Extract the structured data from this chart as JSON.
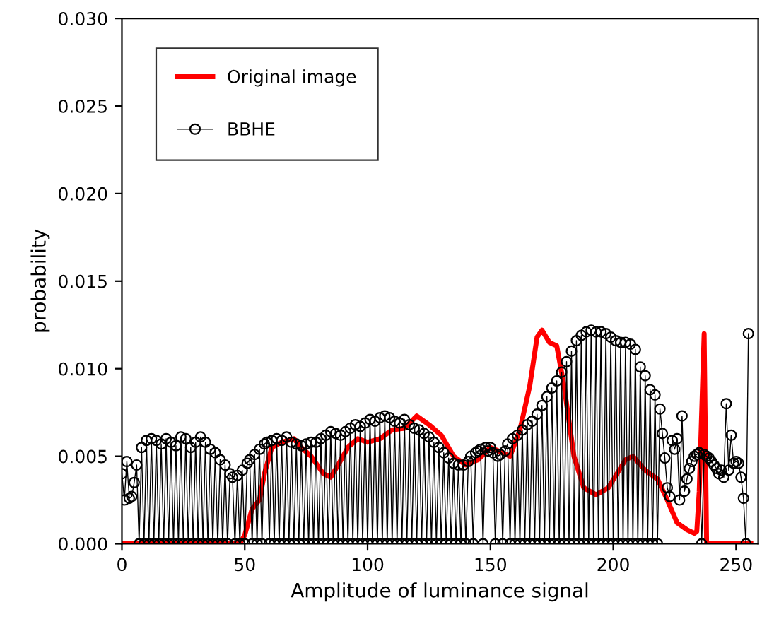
{
  "chart_data": {
    "type": "line",
    "xlabel": "Amplitude of luminance signal",
    "ylabel": "probability",
    "xlim": [
      0,
      259
    ],
    "xticks": [
      0,
      50,
      100,
      150,
      200,
      250
    ],
    "ylim": [
      0,
      0.03
    ],
    "yticks": [
      {
        "value": 0,
        "label": "0.000"
      },
      {
        "value": 0.005,
        "label": "0.005"
      },
      {
        "value": 0.01,
        "label": "0.010"
      },
      {
        "value": 0.015,
        "label": "0.015"
      },
      {
        "value": 0.02,
        "label": "0.020"
      },
      {
        "value": 0.025,
        "label": "0.025"
      },
      {
        "value": 0.03,
        "label": "0.030"
      }
    ],
    "grid": false,
    "legend": "top left",
    "series": [
      {
        "name": "Original image",
        "color": "#ff0000",
        "marker": "none",
        "line_style": "solid",
        "x": [
          0,
          48,
          50,
          53,
          56,
          58,
          61,
          65,
          70,
          73,
          77,
          82,
          85,
          88,
          92,
          96,
          100,
          105,
          110,
          115,
          120,
          125,
          130,
          135,
          140,
          145,
          150,
          155,
          158,
          162,
          166,
          169,
          171,
          174,
          177,
          180,
          184,
          188,
          193,
          198,
          205,
          208,
          213,
          218,
          222,
          226,
          230,
          233,
          234,
          235,
          237,
          238,
          256
        ],
        "values": [
          0,
          0,
          0.0005,
          0.002,
          0.0025,
          0.004,
          0.0055,
          0.0058,
          0.006,
          0.0055,
          0.005,
          0.004,
          0.0038,
          0.0045,
          0.0055,
          0.006,
          0.0058,
          0.006,
          0.0065,
          0.0066,
          0.0073,
          0.0068,
          0.0062,
          0.005,
          0.0045,
          0.0048,
          0.0055,
          0.0052,
          0.005,
          0.0065,
          0.009,
          0.0118,
          0.0122,
          0.0115,
          0.0113,
          0.009,
          0.005,
          0.0032,
          0.0028,
          0.0032,
          0.0048,
          0.005,
          0.0042,
          0.0037,
          0.0025,
          0.0012,
          0.0008,
          0.0006,
          0.0007,
          0.003,
          0.012,
          0,
          0
        ]
      },
      {
        "name": "BBHE",
        "color": "#000000",
        "marker": "circle",
        "line_style": "solid",
        "x": [
          0,
          1,
          2,
          3,
          4,
          5,
          6,
          7,
          8,
          9,
          10,
          11,
          12,
          13,
          14,
          15,
          16,
          17,
          18,
          19,
          20,
          21,
          22,
          23,
          24,
          25,
          26,
          27,
          28,
          29,
          30,
          31,
          32,
          33,
          34,
          35,
          36,
          37,
          38,
          39,
          40,
          41,
          42,
          43,
          44,
          45,
          46,
          47,
          48,
          49,
          50,
          51,
          52,
          53,
          54,
          55,
          56,
          57,
          58,
          59,
          60,
          61,
          62,
          63,
          64,
          65,
          66,
          67,
          68,
          69,
          70,
          71,
          72,
          73,
          74,
          75,
          76,
          77,
          78,
          79,
          80,
          81,
          82,
          83,
          84,
          85,
          86,
          87,
          88,
          89,
          90,
          91,
          92,
          93,
          94,
          95,
          96,
          97,
          98,
          99,
          100,
          101,
          102,
          103,
          104,
          105,
          106,
          107,
          108,
          109,
          110,
          111,
          112,
          113,
          114,
          115,
          116,
          117,
          118,
          119,
          120,
          121,
          122,
          123,
          124,
          125,
          126,
          127,
          128,
          129,
          130,
          131,
          132,
          133,
          134,
          135,
          136,
          137,
          138,
          139,
          140,
          141,
          142,
          143,
          144,
          145,
          146,
          147,
          148,
          149,
          150,
          151,
          152,
          153,
          154,
          155,
          156,
          157,
          158,
          159,
          160,
          161,
          162,
          163,
          164,
          165,
          166,
          167,
          168,
          169,
          170,
          171,
          172,
          173,
          174,
          175,
          176,
          177,
          178,
          179,
          180,
          181,
          182,
          183,
          184,
          185,
          186,
          187,
          188,
          189,
          190,
          191,
          192,
          193,
          194,
          195,
          196,
          197,
          198,
          199,
          200,
          201,
          202,
          203,
          204,
          205,
          206,
          207,
          208,
          209,
          210,
          211,
          212,
          213,
          214,
          215,
          216,
          217,
          218,
          219,
          220,
          221,
          222,
          223,
          224,
          225,
          226,
          227,
          228,
          229,
          230,
          231,
          232,
          233,
          234,
          235,
          236,
          237,
          238,
          239,
          240,
          241,
          242,
          243,
          244,
          245,
          246,
          247,
          248,
          249,
          250,
          251,
          252,
          253,
          254,
          255
        ],
        "values": [
          0.004,
          0.0025,
          0.0047,
          0.0026,
          0.0027,
          0.0035,
          0.0045,
          0,
          0.0055,
          0,
          0.0059,
          0,
          0.006,
          0,
          0.0059,
          0,
          0.0057,
          0,
          0.006,
          0,
          0.0058,
          0,
          0.0056,
          0,
          0.0061,
          0,
          0.006,
          0,
          0.0055,
          0,
          0.0058,
          0,
          0.0061,
          0,
          0.0058,
          0,
          0.0054,
          0,
          0.0052,
          0,
          0.0048,
          0,
          0.0045,
          0,
          0.004,
          0.0038,
          0,
          0.0039,
          0,
          0.0042,
          0,
          0.0046,
          0.0048,
          0,
          0.0051,
          0,
          0.0054,
          0,
          0.0057,
          0.0058,
          0,
          0.0059,
          0,
          0.006,
          0,
          0.0059,
          0,
          0.0061,
          0,
          0.0058,
          0,
          0.0057,
          0,
          0.0056,
          0,
          0.0057,
          0,
          0.0058,
          0,
          0.0058,
          0,
          0.006,
          0,
          0.0062,
          0,
          0.0064,
          0,
          0.0063,
          0,
          0.0062,
          0,
          0.0064,
          0,
          0.0066,
          0,
          0.0068,
          0,
          0.0067,
          0,
          0.0069,
          0,
          0.0071,
          0,
          0.007,
          0,
          0.0072,
          0,
          0.0073,
          0,
          0.0072,
          0,
          0.007,
          0,
          0.0069,
          0,
          0.0071,
          0,
          0.0068,
          0,
          0.0066,
          0,
          0.0065,
          0,
          0.0063,
          0,
          0.0061,
          0,
          0.0058,
          0,
          0.0055,
          0,
          0.0052,
          0,
          0.0049,
          0,
          0.0046,
          0,
          0.0045,
          0,
          0.0045,
          0,
          0.0047,
          0.005,
          0,
          0.0052,
          0.0053,
          0.0054,
          0,
          0.0055,
          0.0053,
          0.0055,
          0.0052,
          0,
          0.005,
          0.0051,
          0,
          0.0053,
          0.0057,
          0,
          0.006,
          0,
          0.0062,
          0,
          0.0065,
          0,
          0.0068,
          0,
          0.007,
          0,
          0.0074,
          0,
          0.0079,
          0,
          0.0084,
          0,
          0.0089,
          0,
          0.0093,
          0,
          0.0098,
          0,
          0.0104,
          0,
          0.011,
          0,
          0.0116,
          0,
          0.0119,
          0,
          0.0121,
          0,
          0.0122,
          0,
          0.0121,
          0,
          0.0121,
          0,
          0.012,
          0,
          0.0118,
          0,
          0.0116,
          0,
          0.0115,
          0,
          0.0115,
          0,
          0.0114,
          0,
          0.0111,
          0,
          0.0101,
          0,
          0.0096,
          0,
          0.0088,
          0,
          0.0085,
          0,
          0.0077,
          0.0063,
          0.0049,
          0.0032,
          0.0027,
          0.0059,
          0.0054,
          0.006,
          0.0025,
          0.0073,
          0.003,
          0.0037,
          0.0043,
          0.0047,
          0.005,
          0.0051,
          0.0052,
          0,
          0.0051,
          0.005,
          0.0049,
          0.0047,
          0.0045,
          0.0043,
          0.004,
          0.0042,
          0.0038,
          0.008,
          0.0042,
          0.0062,
          0.0046,
          0.0047,
          0.0046,
          0.0038,
          0.0026,
          0,
          0.012
        ]
      }
    ]
  }
}
